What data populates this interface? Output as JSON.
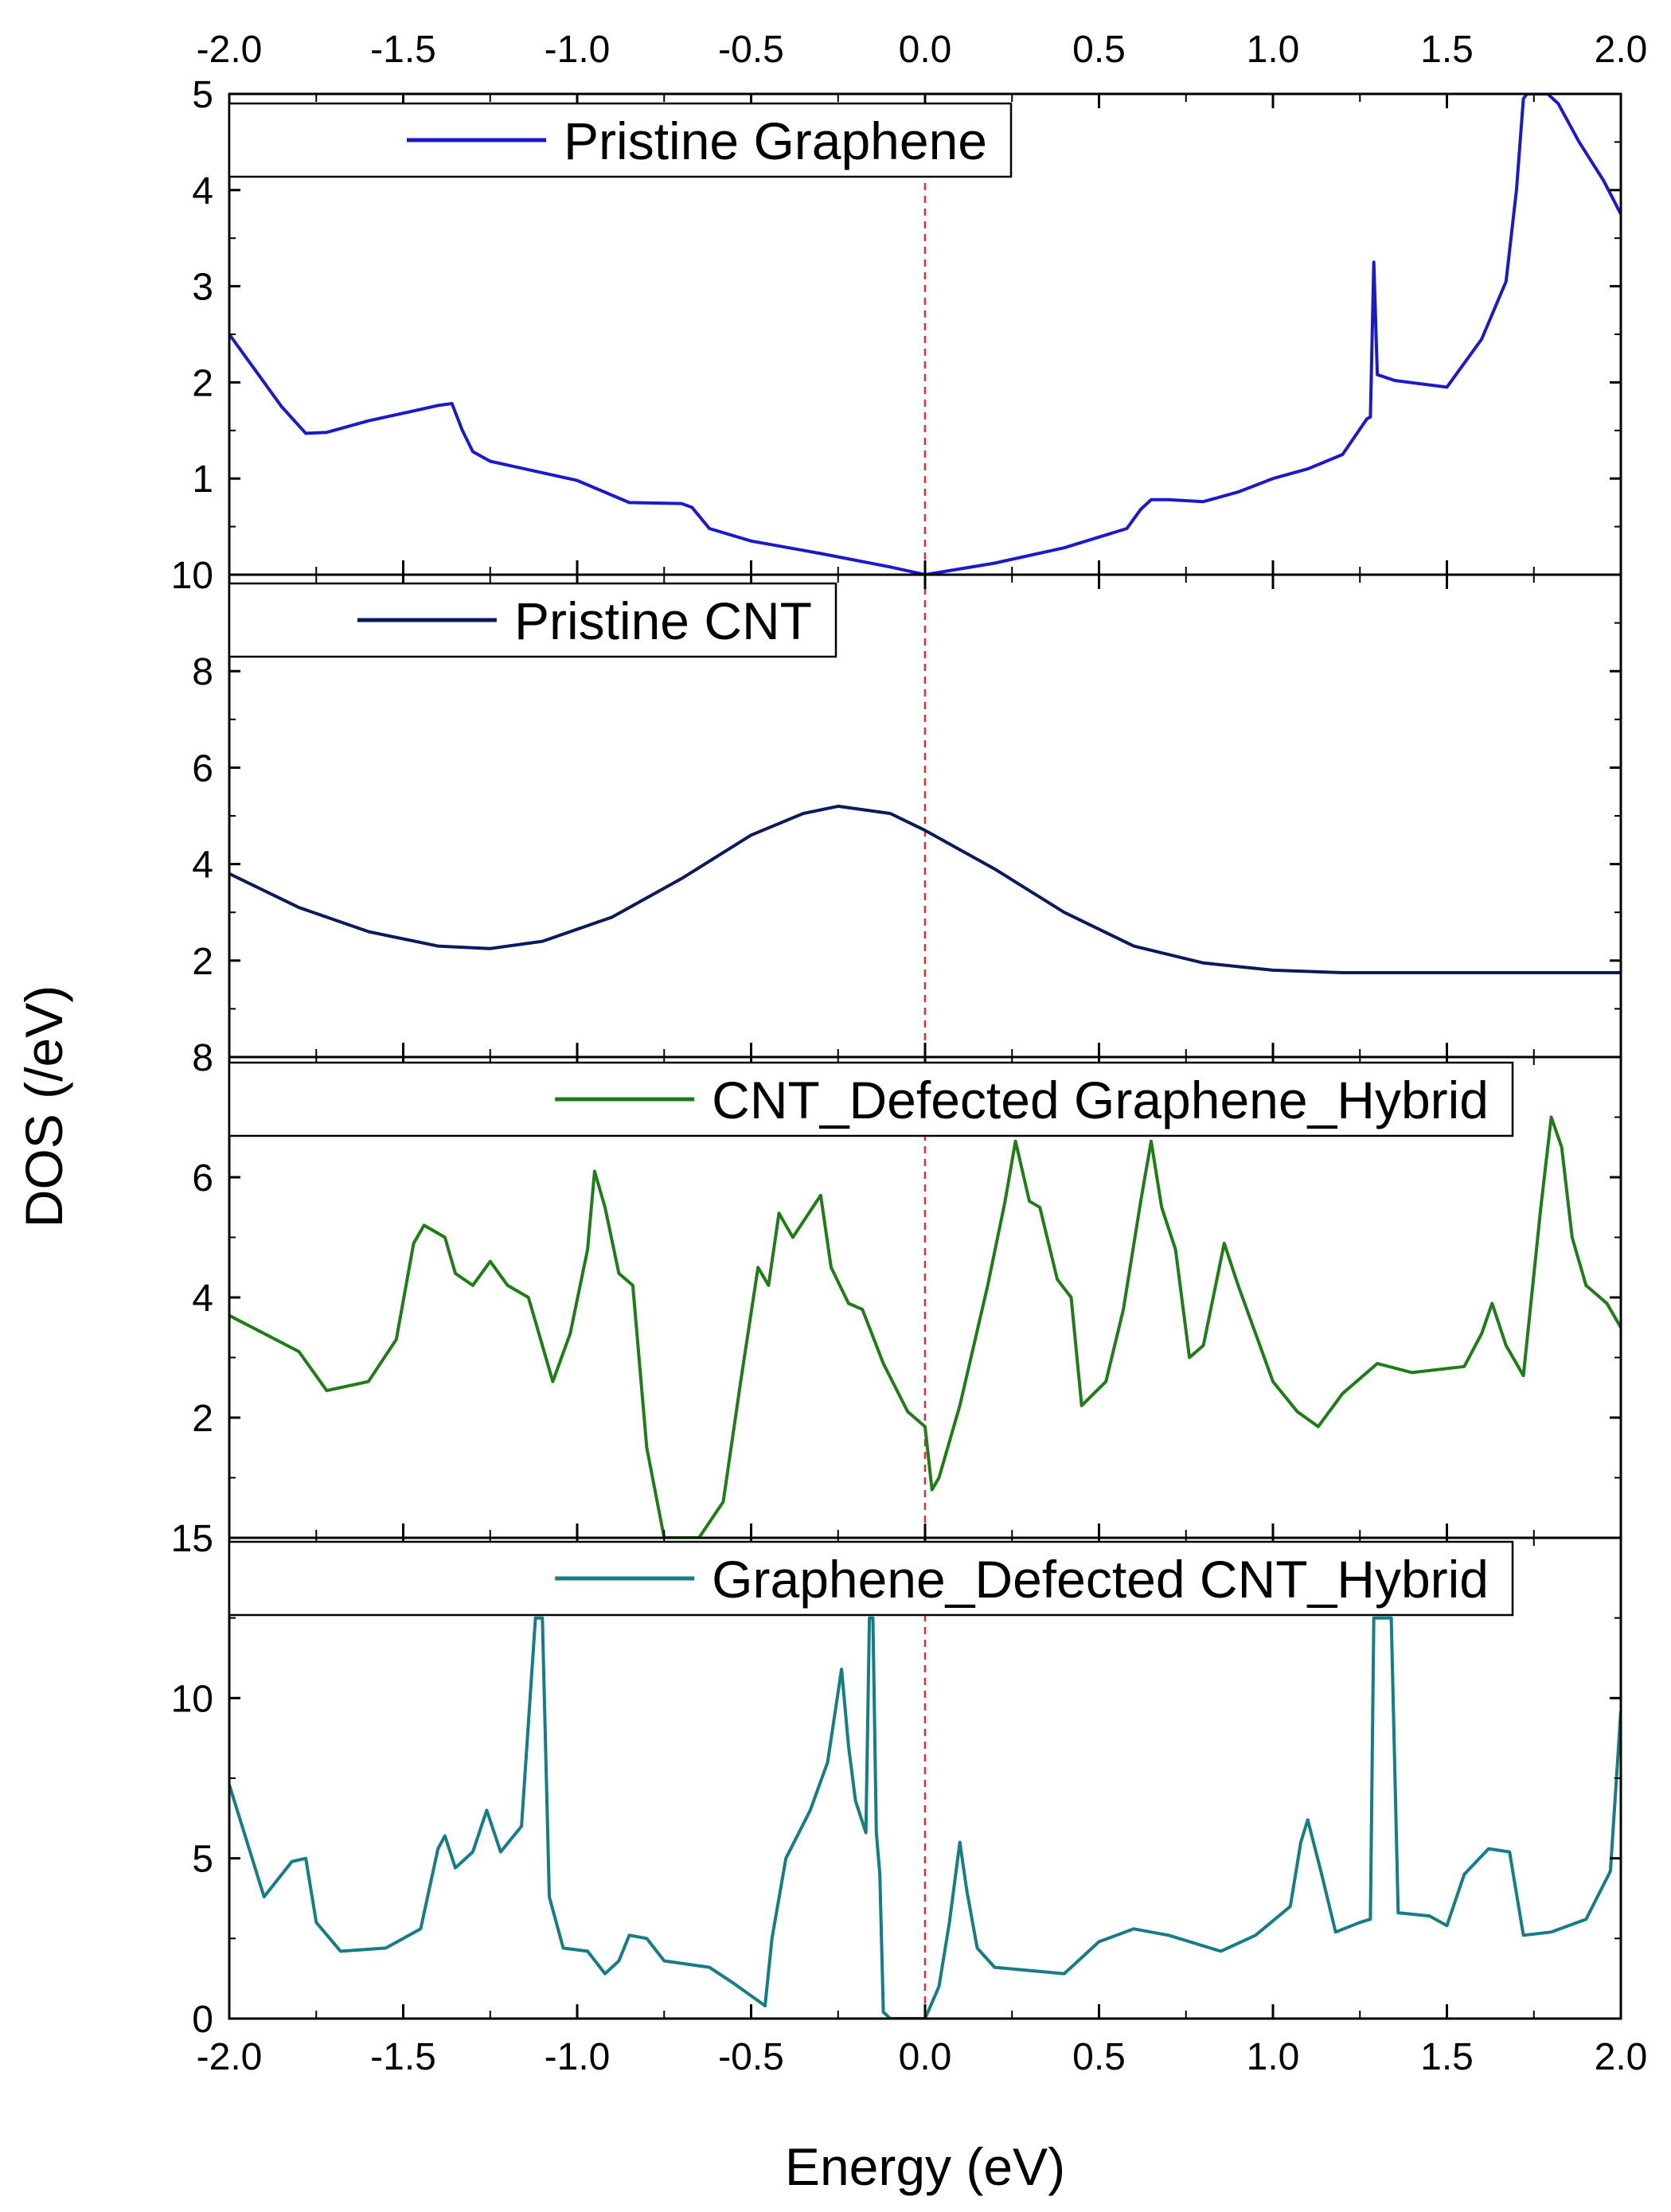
{
  "chart_data": {
    "type": "line",
    "xlabel": "Energy (eV)",
    "ylabel": "DOS (/eV)",
    "xlim": [
      -2.0,
      2.0
    ],
    "xticks": [
      "-2.0",
      "-1.5",
      "-1.0",
      "-0.5",
      "0.0",
      "0.5",
      "1.0",
      "1.5",
      "2.0"
    ],
    "fermi_level": 0.0,
    "panels": [
      {
        "legend": "Pristine Graphene",
        "color": "#1a1acc",
        "ylim": [
          0,
          5
        ],
        "yticks": [
          "1",
          "2",
          "3",
          "4",
          "5"
        ],
        "points": [
          [
            -2.0,
            2.5
          ],
          [
            -1.92,
            2.1
          ],
          [
            -1.85,
            1.75
          ],
          [
            -1.78,
            1.47
          ],
          [
            -1.72,
            1.48
          ],
          [
            -1.6,
            1.6
          ],
          [
            -1.5,
            1.68
          ],
          [
            -1.4,
            1.76
          ],
          [
            -1.36,
            1.78
          ],
          [
            -1.33,
            1.5
          ],
          [
            -1.3,
            1.28
          ],
          [
            -1.25,
            1.18
          ],
          [
            -1.0,
            0.98
          ],
          [
            -0.85,
            0.75
          ],
          [
            -0.7,
            0.74
          ],
          [
            -0.67,
            0.7
          ],
          [
            -0.62,
            0.48
          ],
          [
            -0.5,
            0.35
          ],
          [
            -0.3,
            0.22
          ],
          [
            -0.1,
            0.08
          ],
          [
            0.0,
            0.0
          ],
          [
            0.2,
            0.12
          ],
          [
            0.4,
            0.28
          ],
          [
            0.58,
            0.48
          ],
          [
            0.62,
            0.68
          ],
          [
            0.65,
            0.78
          ],
          [
            0.7,
            0.78
          ],
          [
            0.8,
            0.76
          ],
          [
            0.9,
            0.86
          ],
          [
            1.0,
            1.0
          ],
          [
            1.1,
            1.1
          ],
          [
            1.2,
            1.25
          ],
          [
            1.27,
            1.62
          ],
          [
            1.28,
            1.64
          ],
          [
            1.29,
            3.25
          ],
          [
            1.3,
            2.08
          ],
          [
            1.35,
            2.02
          ],
          [
            1.5,
            1.95
          ],
          [
            1.6,
            2.45
          ],
          [
            1.67,
            3.05
          ],
          [
            1.7,
            4.0
          ],
          [
            1.72,
            4.95
          ],
          [
            1.73,
            5.0
          ],
          [
            1.76,
            5.0
          ],
          [
            1.79,
            5.0
          ],
          [
            1.82,
            4.9
          ],
          [
            1.88,
            4.5
          ],
          [
            1.95,
            4.1
          ],
          [
            2.0,
            3.75
          ]
        ]
      },
      {
        "legend": "Pristine CNT",
        "color": "#0a1a5c",
        "ylim": [
          0,
          10
        ],
        "yticks": [
          "2",
          "4",
          "6",
          "8",
          "10"
        ],
        "points": [
          [
            -2.0,
            3.8
          ],
          [
            -1.8,
            3.1
          ],
          [
            -1.6,
            2.6
          ],
          [
            -1.4,
            2.3
          ],
          [
            -1.25,
            2.25
          ],
          [
            -1.1,
            2.4
          ],
          [
            -0.9,
            2.9
          ],
          [
            -0.7,
            3.7
          ],
          [
            -0.5,
            4.6
          ],
          [
            -0.35,
            5.05
          ],
          [
            -0.25,
            5.2
          ],
          [
            -0.1,
            5.05
          ],
          [
            0.0,
            4.7
          ],
          [
            0.2,
            3.9
          ],
          [
            0.4,
            3.0
          ],
          [
            0.6,
            2.3
          ],
          [
            0.8,
            1.95
          ],
          [
            1.0,
            1.8
          ],
          [
            1.2,
            1.75
          ],
          [
            1.5,
            1.75
          ],
          [
            2.0,
            1.75
          ]
        ]
      },
      {
        "legend": "CNT_Defected Graphene_Hybrid",
        "color": "#1e7d16",
        "ylim": [
          0,
          8
        ],
        "yticks": [
          "2",
          "4",
          "6",
          "8"
        ],
        "points": [
          [
            -2.0,
            3.7
          ],
          [
            -1.9,
            3.4
          ],
          [
            -1.8,
            3.1
          ],
          [
            -1.72,
            2.45
          ],
          [
            -1.6,
            2.6
          ],
          [
            -1.52,
            3.3
          ],
          [
            -1.47,
            4.9
          ],
          [
            -1.44,
            5.2
          ],
          [
            -1.38,
            5.0
          ],
          [
            -1.35,
            4.4
          ],
          [
            -1.3,
            4.2
          ],
          [
            -1.25,
            4.6
          ],
          [
            -1.2,
            4.2
          ],
          [
            -1.14,
            4.0
          ],
          [
            -1.07,
            2.6
          ],
          [
            -1.02,
            3.4
          ],
          [
            -0.97,
            4.8
          ],
          [
            -0.95,
            6.1
          ],
          [
            -0.92,
            5.5
          ],
          [
            -0.88,
            4.4
          ],
          [
            -0.84,
            4.2
          ],
          [
            -0.8,
            1.5
          ],
          [
            -0.75,
            0.0
          ],
          [
            -0.65,
            0.0
          ],
          [
            -0.58,
            0.6
          ],
          [
            -0.53,
            2.6
          ],
          [
            -0.48,
            4.5
          ],
          [
            -0.45,
            4.2
          ],
          [
            -0.42,
            5.4
          ],
          [
            -0.38,
            5.0
          ],
          [
            -0.3,
            5.7
          ],
          [
            -0.27,
            4.5
          ],
          [
            -0.22,
            3.9
          ],
          [
            -0.18,
            3.8
          ],
          [
            -0.12,
            2.9
          ],
          [
            -0.05,
            2.1
          ],
          [
            0.0,
            1.85
          ],
          [
            0.02,
            0.8
          ],
          [
            0.04,
            1.0
          ],
          [
            0.1,
            2.2
          ],
          [
            0.18,
            4.2
          ],
          [
            0.23,
            5.6
          ],
          [
            0.26,
            6.6
          ],
          [
            0.3,
            5.6
          ],
          [
            0.33,
            5.5
          ],
          [
            0.38,
            4.3
          ],
          [
            0.42,
            4.0
          ],
          [
            0.45,
            2.2
          ],
          [
            0.52,
            2.6
          ],
          [
            0.57,
            3.8
          ],
          [
            0.62,
            5.6
          ],
          [
            0.65,
            6.6
          ],
          [
            0.68,
            5.5
          ],
          [
            0.72,
            4.8
          ],
          [
            0.76,
            3.0
          ],
          [
            0.8,
            3.2
          ],
          [
            0.86,
            4.9
          ],
          [
            0.9,
            4.2
          ],
          [
            1.0,
            2.6
          ],
          [
            1.07,
            2.1
          ],
          [
            1.13,
            1.85
          ],
          [
            1.2,
            2.4
          ],
          [
            1.3,
            2.9
          ],
          [
            1.4,
            2.75
          ],
          [
            1.55,
            2.85
          ],
          [
            1.6,
            3.4
          ],
          [
            1.63,
            3.9
          ],
          [
            1.67,
            3.2
          ],
          [
            1.72,
            2.7
          ],
          [
            1.77,
            5.5
          ],
          [
            1.8,
            7.0
          ],
          [
            1.83,
            6.5
          ],
          [
            1.86,
            5.0
          ],
          [
            1.9,
            4.2
          ],
          [
            1.96,
            3.9
          ],
          [
            2.0,
            3.5
          ]
        ]
      },
      {
        "legend": "Graphene_Defected CNT_Hybrid",
        "color": "#147d85",
        "ylim": [
          0,
          15
        ],
        "yticks": [
          "0",
          "5",
          "10",
          "15"
        ],
        "points": [
          [
            -2.0,
            7.3
          ],
          [
            -1.9,
            3.8
          ],
          [
            -1.82,
            4.9
          ],
          [
            -1.78,
            5.0
          ],
          [
            -1.75,
            3.0
          ],
          [
            -1.68,
            2.1
          ],
          [
            -1.55,
            2.2
          ],
          [
            -1.45,
            2.8
          ],
          [
            -1.4,
            5.3
          ],
          [
            -1.38,
            5.7
          ],
          [
            -1.35,
            4.7
          ],
          [
            -1.3,
            5.2
          ],
          [
            -1.26,
            6.5
          ],
          [
            -1.22,
            5.2
          ],
          [
            -1.16,
            6.0
          ],
          [
            -1.12,
            12.5
          ],
          [
            -1.1,
            12.5
          ],
          [
            -1.08,
            3.8
          ],
          [
            -1.04,
            2.2
          ],
          [
            -0.97,
            2.1
          ],
          [
            -0.92,
            1.4
          ],
          [
            -0.88,
            1.8
          ],
          [
            -0.85,
            2.6
          ],
          [
            -0.8,
            2.5
          ],
          [
            -0.75,
            1.8
          ],
          [
            -0.62,
            1.6
          ],
          [
            -0.55,
            1.1
          ],
          [
            -0.46,
            0.4
          ],
          [
            -0.44,
            2.5
          ],
          [
            -0.4,
            5.0
          ],
          [
            -0.33,
            6.5
          ],
          [
            -0.28,
            8.0
          ],
          [
            -0.24,
            10.9
          ],
          [
            -0.22,
            8.5
          ],
          [
            -0.2,
            6.8
          ],
          [
            -0.17,
            5.8
          ],
          [
            -0.16,
            12.5
          ],
          [
            -0.15,
            12.5
          ],
          [
            -0.14,
            5.8
          ],
          [
            -0.13,
            4.5
          ],
          [
            -0.12,
            0.2
          ],
          [
            -0.1,
            0.0
          ],
          [
            -0.05,
            0.0
          ],
          [
            0.0,
            0.0
          ],
          [
            0.04,
            1.0
          ],
          [
            0.07,
            3.0
          ],
          [
            0.1,
            5.5
          ],
          [
            0.12,
            4.0
          ],
          [
            0.15,
            2.2
          ],
          [
            0.2,
            1.6
          ],
          [
            0.3,
            1.5
          ],
          [
            0.4,
            1.4
          ],
          [
            0.5,
            2.4
          ],
          [
            0.6,
            2.8
          ],
          [
            0.7,
            2.6
          ],
          [
            0.85,
            2.1
          ],
          [
            0.95,
            2.6
          ],
          [
            1.05,
            3.5
          ],
          [
            1.08,
            5.5
          ],
          [
            1.1,
            6.2
          ],
          [
            1.14,
            4.5
          ],
          [
            1.18,
            2.7
          ],
          [
            1.25,
            3.0
          ],
          [
            1.28,
            3.1
          ],
          [
            1.29,
            12.5
          ],
          [
            1.3,
            12.5
          ],
          [
            1.34,
            12.5
          ],
          [
            1.36,
            3.3
          ],
          [
            1.45,
            3.2
          ],
          [
            1.5,
            2.9
          ],
          [
            1.55,
            4.5
          ],
          [
            1.62,
            5.3
          ],
          [
            1.68,
            5.2
          ],
          [
            1.72,
            2.6
          ],
          [
            1.8,
            2.7
          ],
          [
            1.9,
            3.1
          ],
          [
            1.97,
            4.6
          ],
          [
            2.0,
            9.6
          ]
        ]
      }
    ]
  }
}
